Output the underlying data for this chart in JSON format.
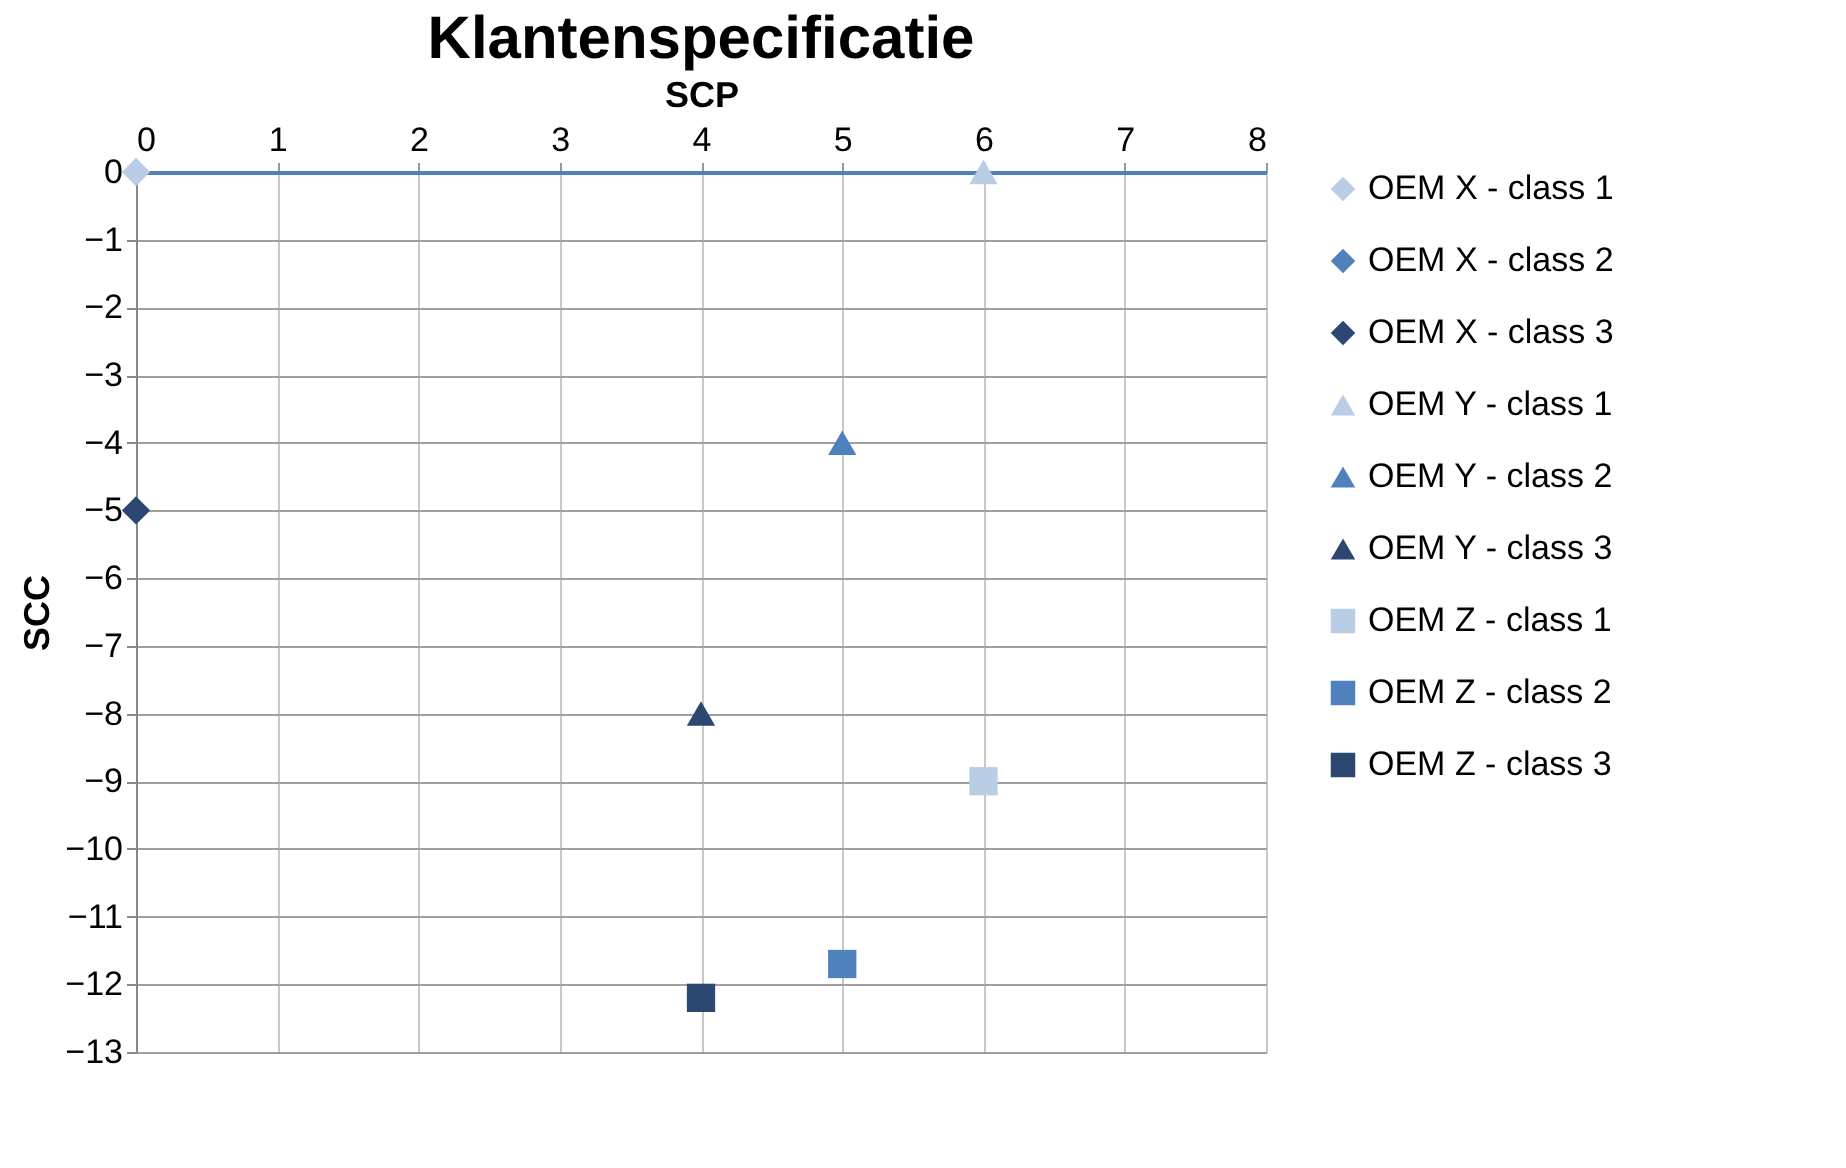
{
  "chart_data": {
    "type": "scatter",
    "title": "Klantenspecificatie",
    "xlabel": "SCP",
    "ylabel": "SCC",
    "xlim": [
      0,
      8
    ],
    "xticks": [
      0,
      1,
      2,
      3,
      4,
      5,
      6,
      7,
      8
    ],
    "ylim": [
      -13,
      0
    ],
    "yticks": [
      0,
      -1,
      -2,
      -3,
      -4,
      -5,
      -6,
      -7,
      -8,
      -9,
      -10,
      -11,
      -12,
      -13
    ],
    "grid": true,
    "legend": "right",
    "series": [
      {
        "name": "OEM X - class 1",
        "color": "#b9cde5",
        "marker": "diamond",
        "x": [
          0
        ],
        "values": [
          0
        ]
      },
      {
        "name": "OEM X - class 2",
        "color": "#4f81bd",
        "marker": "diamond"
      },
      {
        "name": "OEM X - class 3",
        "color": "#2c4770",
        "marker": "diamond",
        "x": [
          0
        ],
        "values": [
          -5
        ]
      },
      {
        "name": "OEM Y - class 1",
        "color": "#b9cde5",
        "marker": "triangle",
        "x": [
          6
        ],
        "values": [
          0
        ]
      },
      {
        "name": "OEM Y - class 2",
        "color": "#4f81bd",
        "marker": "triangle",
        "x": [
          5
        ],
        "values": [
          -4
        ]
      },
      {
        "name": "OEM Y - class 3",
        "color": "#2c4770",
        "marker": "triangle",
        "x": [
          4
        ],
        "values": [
          -8
        ]
      },
      {
        "name": "OEM Z - class 1",
        "color": "#b9cde5",
        "marker": "square",
        "x": [
          6
        ],
        "values": [
          -9
        ]
      },
      {
        "name": "OEM Z - class 2",
        "color": "#4f81bd",
        "marker": "square",
        "x": [
          5
        ],
        "values": [
          -11.7
        ]
      },
      {
        "name": "OEM Z - class 3",
        "color": "#2c4770",
        "marker": "square",
        "x": [
          4
        ],
        "values": [
          -12.2
        ]
      }
    ]
  }
}
